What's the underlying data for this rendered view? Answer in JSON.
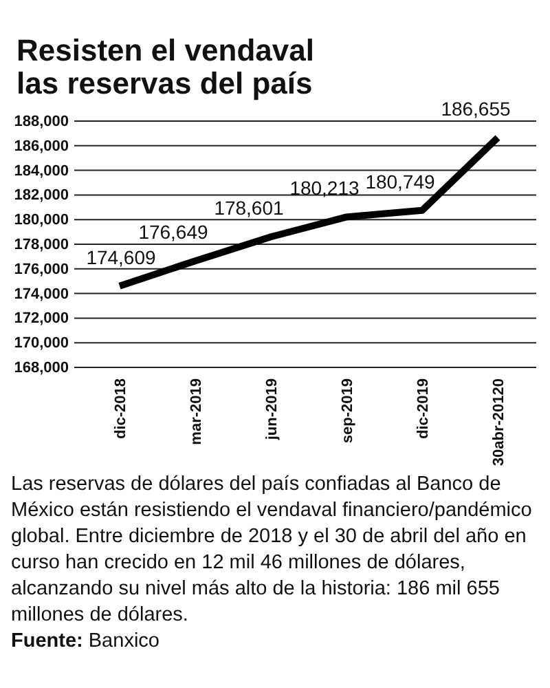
{
  "chart_data": {
    "type": "line",
    "title": "Resisten el vendaval las reservas del país",
    "categories": [
      "dic-2018",
      "mar-2019",
      "jun-2019",
      "sep-2019",
      "dic-2019",
      "30abr-20120"
    ],
    "series": [
      {
        "color": "#000000",
        "values": [
          174609,
          176649,
          178601,
          180213,
          180749,
          186655
        ]
      }
    ],
    "ylim": [
      168000,
      188000
    ],
    "yticks": [
      {
        "value": 168000,
        "label": "168,000"
      },
      {
        "value": 170000,
        "label": "170,000"
      },
      {
        "value": 172000,
        "label": "172,000"
      },
      {
        "value": 174000,
        "label": "174,000"
      },
      {
        "value": 176000,
        "label": "176,000"
      },
      {
        "value": 178000,
        "label": "178,000"
      },
      {
        "value": 180000,
        "label": "180,000"
      },
      {
        "value": 182000,
        "label": "182,000"
      },
      {
        "value": 184000,
        "label": "184,000"
      },
      {
        "value": 186000,
        "label": "186,000"
      },
      {
        "value": 188000,
        "label": "188,000"
      }
    ],
    "grid": "y",
    "marker": "none",
    "line_style": "solid",
    "value_labels": [
      "174,609",
      "176,649",
      "178,601",
      "180,213",
      "180,749",
      "186,655"
    ],
    "annotations": [
      "Las reservas de dólares del país confiadas al Banco de México están resistiendo el vendaval financiero/pandémico global. Entre diciembre de 2018 y el 30 de abril del año en curso han crecido en 12 mil 46 millones de dólares, alcanzando su nivel más alto de la historia: 186 mil 655 millones de dólares.",
      "Fuente: Banxico"
    ]
  }
}
